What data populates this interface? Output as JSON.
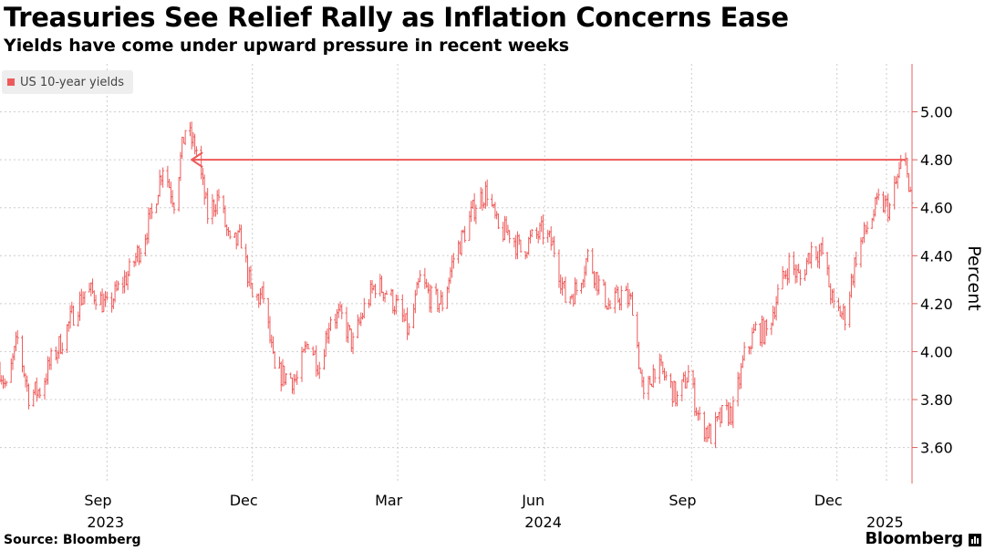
{
  "header": {
    "title": "Treasuries See Relief Rally as Inflation Concerns Ease",
    "subtitle": "Yields have come under upward pressure in recent weeks"
  },
  "footer": {
    "source": "Source: Bloomberg",
    "brand": "Bloomberg"
  },
  "colors": {
    "series": "#ee5a5a",
    "grid": "#cccccc",
    "axis": "#e06060"
  },
  "chart_data": {
    "type": "line",
    "title": "Treasuries See Relief Rally as Inflation Concerns Ease",
    "subtitle": "Yields have come under upward pressure in recent weeks",
    "ylabel": "Percent",
    "ylim": [
      3.45,
      5.2
    ],
    "yticks": [
      3.6,
      3.8,
      4.0,
      4.2,
      4.4,
      4.6,
      4.8,
      5.0
    ],
    "ytick_labels": [
      "3.60",
      "3.80",
      "4.00",
      "4.20",
      "4.40",
      "4.60",
      "4.80",
      "5.00"
    ],
    "xlim": [
      "2023-06-26",
      "2025-01-17"
    ],
    "xticks": [
      {
        "date": "2023-09-01",
        "label": "Sep",
        "year": "2023"
      },
      {
        "date": "2023-12-01",
        "label": "Dec",
        "year": ""
      },
      {
        "date": "2024-03-01",
        "label": "Mar",
        "year": ""
      },
      {
        "date": "2024-06-01",
        "label": "Jun",
        "year": "2024"
      },
      {
        "date": "2024-09-01",
        "label": "Sep",
        "year": ""
      },
      {
        "date": "2024-12-01",
        "label": "Dec",
        "year": ""
      },
      {
        "date": "2025-01-01",
        "label": "",
        "year": "2025"
      }
    ],
    "grid": true,
    "legend_position": "top-left",
    "series": [
      {
        "name": "US 10-year yields",
        "style": "daily high-low bars",
        "points": [
          [
            "2023-06-26",
            3.93
          ],
          [
            "2023-06-30",
            3.84
          ],
          [
            "2023-07-07",
            4.05
          ],
          [
            "2023-07-14",
            3.82
          ],
          [
            "2023-07-21",
            3.84
          ],
          [
            "2023-07-28",
            3.96
          ],
          [
            "2023-08-04",
            4.05
          ],
          [
            "2023-08-11",
            4.16
          ],
          [
            "2023-08-18",
            4.25
          ],
          [
            "2023-08-25",
            4.24
          ],
          [
            "2023-09-01",
            4.18
          ],
          [
            "2023-09-08",
            4.26
          ],
          [
            "2023-09-15",
            4.33
          ],
          [
            "2023-09-22",
            4.44
          ],
          [
            "2023-09-29",
            4.57
          ],
          [
            "2023-10-06",
            4.78
          ],
          [
            "2023-10-13",
            4.63
          ],
          [
            "2023-10-20",
            4.93
          ],
          [
            "2023-10-27",
            4.84
          ],
          [
            "2023-11-03",
            4.57
          ],
          [
            "2023-11-10",
            4.65
          ],
          [
            "2023-11-17",
            4.44
          ],
          [
            "2023-11-24",
            4.47
          ],
          [
            "2023-12-01",
            4.22
          ],
          [
            "2023-12-08",
            4.23
          ],
          [
            "2023-12-15",
            3.91
          ],
          [
            "2023-12-22",
            3.9
          ],
          [
            "2023-12-29",
            3.88
          ],
          [
            "2024-01-05",
            4.05
          ],
          [
            "2024-01-12",
            3.94
          ],
          [
            "2024-01-19",
            4.15
          ],
          [
            "2024-01-26",
            4.14
          ],
          [
            "2024-02-02",
            4.03
          ],
          [
            "2024-02-09",
            4.18
          ],
          [
            "2024-02-16",
            4.28
          ],
          [
            "2024-02-23",
            4.25
          ],
          [
            "2024-03-01",
            4.18
          ],
          [
            "2024-03-08",
            4.08
          ],
          [
            "2024-03-15",
            4.3
          ],
          [
            "2024-03-22",
            4.22
          ],
          [
            "2024-03-29",
            4.2
          ],
          [
            "2024-04-05",
            4.39
          ],
          [
            "2024-04-12",
            4.5
          ],
          [
            "2024-04-19",
            4.62
          ],
          [
            "2024-04-26",
            4.67
          ],
          [
            "2024-05-03",
            4.5
          ],
          [
            "2024-05-10",
            4.5
          ],
          [
            "2024-05-17",
            4.42
          ],
          [
            "2024-05-24",
            4.47
          ],
          [
            "2024-05-31",
            4.5
          ],
          [
            "2024-06-07",
            4.43
          ],
          [
            "2024-06-14",
            4.22
          ],
          [
            "2024-06-21",
            4.26
          ],
          [
            "2024-06-28",
            4.4
          ],
          [
            "2024-07-05",
            4.28
          ],
          [
            "2024-07-12",
            4.18
          ],
          [
            "2024-07-19",
            4.24
          ],
          [
            "2024-07-26",
            4.2
          ],
          [
            "2024-08-02",
            3.79
          ],
          [
            "2024-08-09",
            3.94
          ],
          [
            "2024-08-16",
            3.89
          ],
          [
            "2024-08-23",
            3.8
          ],
          [
            "2024-08-30",
            3.91
          ],
          [
            "2024-09-06",
            3.71
          ],
          [
            "2024-09-13",
            3.65
          ],
          [
            "2024-09-20",
            3.73
          ],
          [
            "2024-09-27",
            3.75
          ],
          [
            "2024-10-04",
            3.98
          ],
          [
            "2024-10-11",
            4.09
          ],
          [
            "2024-10-18",
            4.08
          ],
          [
            "2024-10-25",
            4.24
          ],
          [
            "2024-11-01",
            4.37
          ],
          [
            "2024-11-08",
            4.3
          ],
          [
            "2024-11-15",
            4.43
          ],
          [
            "2024-11-22",
            4.41
          ],
          [
            "2024-11-29",
            4.18
          ],
          [
            "2024-12-06",
            4.15
          ],
          [
            "2024-12-13",
            4.4
          ],
          [
            "2024-12-20",
            4.52
          ],
          [
            "2024-12-27",
            4.62
          ],
          [
            "2025-01-03",
            4.6
          ],
          [
            "2025-01-10",
            4.77
          ],
          [
            "2025-01-14",
            4.79
          ],
          [
            "2025-01-15",
            4.66
          ],
          [
            "2025-01-17",
            4.61
          ]
        ]
      }
    ],
    "annotations": [
      {
        "type": "arrow",
        "from": [
          "2025-01-13",
          4.8
        ],
        "to": [
          "2023-10-24",
          4.8
        ]
      }
    ]
  }
}
